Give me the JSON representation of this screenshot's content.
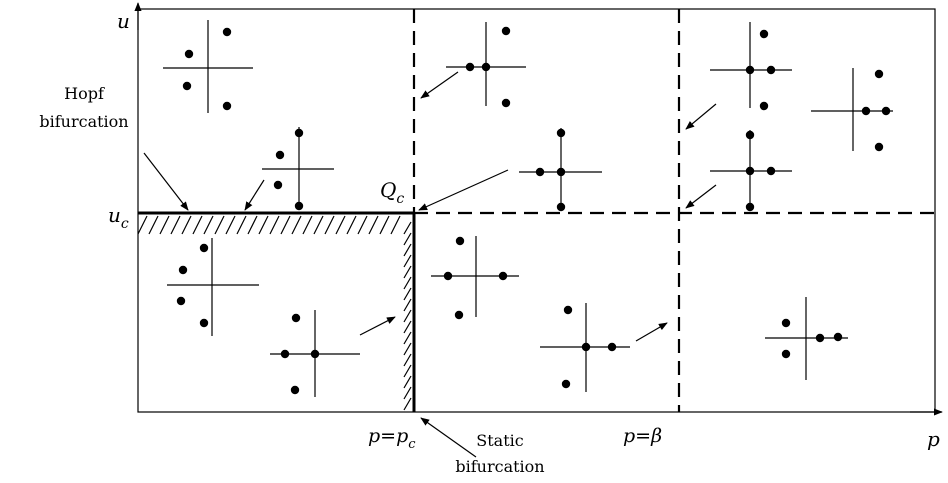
{
  "axes": {
    "y_label": "u",
    "x_label": "p",
    "uc_label": "u",
    "uc_sub": "c"
  },
  "labels": {
    "hopf_line1": "Hopf",
    "hopf_line2": "bifurcation",
    "static_line1": "Static",
    "static_line2": "bifurcation",
    "qc_main": "Q",
    "qc_sub": "c",
    "pc_main": "p=p",
    "pc_sub": "c",
    "beta": "p=β"
  },
  "colors": {
    "ink": "#000000",
    "background": "#ffffff"
  }
}
